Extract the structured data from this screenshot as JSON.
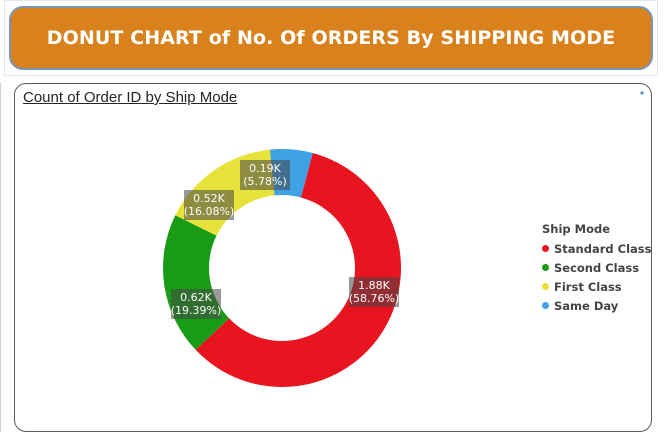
{
  "banner": {
    "title": "DONUT CHART of No. Of ORDERS By SHIPPING MODE"
  },
  "card": {
    "title": "Count of Order ID by Ship Mode"
  },
  "chart_data": {
    "type": "pie",
    "donut": true,
    "title": "Count of Order ID by Ship Mode",
    "legend_title": "Ship Mode",
    "legend_position": "right",
    "slices": [
      {
        "name": "Standard Class",
        "value": 1880,
        "percent": 58.76,
        "label_value": "1.88K",
        "label_percent": "(58.76%)",
        "color": "#e8141f"
      },
      {
        "name": "Second Class",
        "value": 620,
        "percent": 19.39,
        "label_value": "0.62K",
        "label_percent": "(19.39%)",
        "color": "#1a9b17"
      },
      {
        "name": "First Class",
        "value": 520,
        "percent": 16.08,
        "label_value": "0.52K",
        "label_percent": "(16.08%)",
        "color": "#e6e23a"
      },
      {
        "name": "Same Day",
        "value": 190,
        "percent": 5.78,
        "label_value": "0.19K",
        "label_percent": "(5.78%)",
        "color": "#3fa2e5"
      }
    ]
  }
}
